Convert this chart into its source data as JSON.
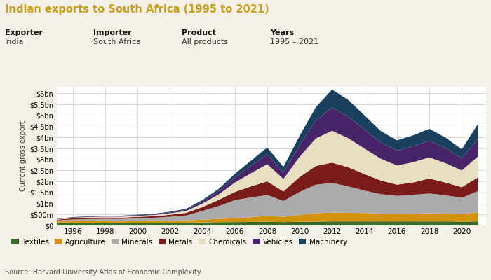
{
  "title": "Indian exports to South Africa (1995 to 2021)",
  "title_color": "#c8a020",
  "subtitle_labels": [
    "Exporter",
    "Importer",
    "Product",
    "Years"
  ],
  "subtitle_values": [
    "India",
    "South Africa",
    "All products",
    "1995 – 2021"
  ],
  "ylabel": "Current gross export",
  "source": "Source: Harvard University Atlas of Economic Complexity",
  "years": [
    1995,
    1996,
    1997,
    1998,
    1999,
    2000,
    2001,
    2002,
    2003,
    2004,
    2005,
    2006,
    2007,
    2008,
    2009,
    2010,
    2011,
    2012,
    2013,
    2014,
    2015,
    2016,
    2017,
    2018,
    2019,
    2020,
    2021
  ],
  "series": {
    "Textiles": [
      130,
      130,
      125,
      120,
      110,
      115,
      120,
      125,
      130,
      140,
      150,
      155,
      160,
      165,
      155,
      165,
      175,
      185,
      185,
      185,
      185,
      185,
      185,
      185,
      185,
      175,
      185
    ],
    "Agriculture": [
      55,
      60,
      65,
      70,
      75,
      80,
      85,
      95,
      105,
      120,
      150,
      175,
      215,
      270,
      240,
      310,
      380,
      400,
      390,
      380,
      360,
      340,
      350,
      370,
      355,
      345,
      400
    ],
    "Minerals": [
      50,
      80,
      100,
      110,
      110,
      130,
      145,
      175,
      220,
      400,
      580,
      820,
      900,
      950,
      720,
      1050,
      1300,
      1350,
      1200,
      1020,
      880,
      820,
      860,
      900,
      830,
      740,
      980
    ],
    "Metals": [
      30,
      55,
      60,
      65,
      60,
      65,
      70,
      90,
      115,
      175,
      280,
      370,
      500,
      620,
      430,
      680,
      850,
      920,
      870,
      750,
      620,
      510,
      560,
      680,
      580,
      480,
      620
    ],
    "Chemicals": [
      20,
      30,
      35,
      40,
      45,
      50,
      55,
      70,
      90,
      160,
      250,
      430,
      600,
      780,
      570,
      920,
      1250,
      1450,
      1320,
      1160,
      990,
      870,
      920,
      960,
      880,
      760,
      950
    ],
    "Vehicles": [
      10,
      15,
      18,
      22,
      25,
      28,
      30,
      40,
      55,
      90,
      140,
      230,
      340,
      450,
      290,
      530,
      820,
      1050,
      980,
      870,
      740,
      680,
      720,
      760,
      680,
      560,
      800
    ],
    "Machinery": [
      8,
      12,
      15,
      18,
      20,
      22,
      25,
      32,
      42,
      70,
      110,
      160,
      230,
      310,
      250,
      420,
      600,
      820,
      760,
      640,
      520,
      460,
      500,
      540,
      480,
      400,
      680
    ]
  },
  "colors": {
    "Textiles": "#3a6b2a",
    "Agriculture": "#d4920a",
    "Minerals": "#aaaaaa",
    "Metals": "#7a1c1c",
    "Chemicals": "#e8dfc0",
    "Vehicles": "#4a2468",
    "Machinery": "#1a4060"
  },
  "yticks": [
    0,
    500,
    1000,
    1500,
    2000,
    2500,
    3000,
    3500,
    4000,
    4500,
    5000,
    5500,
    6000
  ],
  "ytick_labels": [
    "$0",
    "$500m",
    "$1bn",
    "$1.5bn",
    "$2bn",
    "$2.5bn",
    "$3bn",
    "$3.5bn",
    "$4bn",
    "$4.5bn",
    "$5bn",
    "$5.5bn",
    "$6bn"
  ],
  "ylim": [
    0,
    6300
  ],
  "xticks": [
    1996,
    1998,
    2000,
    2002,
    2004,
    2006,
    2008,
    2010,
    2012,
    2014,
    2016,
    2018,
    2020
  ],
  "bg_color": "#f5f0e8",
  "plot_bg": "#ffffff"
}
